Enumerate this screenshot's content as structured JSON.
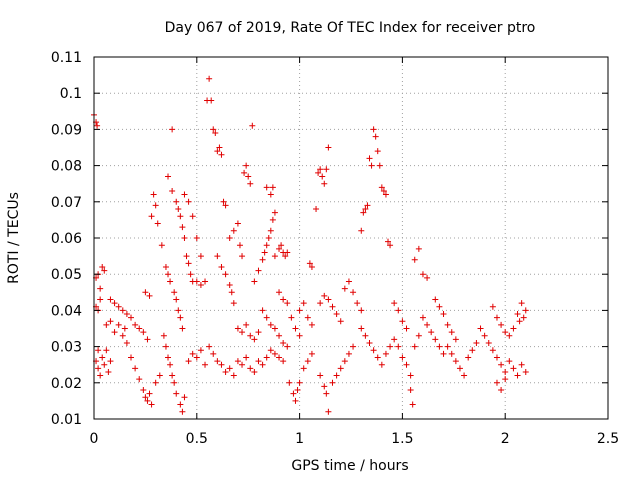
{
  "chart_data": {
    "type": "scatter",
    "title": "Day 067 of 2019, Rate Of TEC Index for receiver ptro",
    "xlabel": "GPS time / hours",
    "ylabel": "ROTI / TECUs",
    "xlim": [
      0,
      2.5
    ],
    "ylim": [
      0.01,
      0.11
    ],
    "x_ticks": [
      0,
      0.5,
      1,
      1.5,
      2,
      2.5
    ],
    "x_tick_labels": [
      "0",
      "0.5",
      "1",
      "1.5",
      "2",
      "2.5"
    ],
    "y_ticks": [
      0.01,
      0.02,
      0.03,
      0.04,
      0.05,
      0.06,
      0.07,
      0.08,
      0.09,
      0.1,
      0.11
    ],
    "y_tick_labels": [
      "0.01",
      "0.02",
      "0.03",
      "0.04",
      "0.05",
      "0.06",
      "0.07",
      "0.08",
      "0.09",
      "0.1",
      "0.11"
    ],
    "grid": true,
    "marker": "+",
    "color": "#e00000",
    "series": [
      {
        "name": "ROTI",
        "points": [
          [
            0.0,
            0.094
          ],
          [
            0.01,
            0.092
          ],
          [
            0.015,
            0.091
          ],
          [
            0.01,
            0.049
          ],
          [
            0.02,
            0.05
          ],
          [
            0.03,
            0.046
          ],
          [
            0.04,
            0.052
          ],
          [
            0.05,
            0.051
          ],
          [
            0.01,
            0.041
          ],
          [
            0.02,
            0.04
          ],
          [
            0.03,
            0.043
          ],
          [
            0.02,
            0.029
          ],
          [
            0.01,
            0.026
          ],
          [
            0.02,
            0.024
          ],
          [
            0.03,
            0.022
          ],
          [
            0.04,
            0.027
          ],
          [
            0.05,
            0.025
          ],
          [
            0.06,
            0.029
          ],
          [
            0.07,
            0.023
          ],
          [
            0.08,
            0.026
          ],
          [
            0.06,
            0.036
          ],
          [
            0.08,
            0.037
          ],
          [
            0.1,
            0.034
          ],
          [
            0.12,
            0.036
          ],
          [
            0.14,
            0.033
          ],
          [
            0.15,
            0.035
          ],
          [
            0.16,
            0.031
          ],
          [
            0.18,
            0.027
          ],
          [
            0.2,
            0.024
          ],
          [
            0.22,
            0.021
          ],
          [
            0.24,
            0.018
          ],
          [
            0.25,
            0.016
          ],
          [
            0.26,
            0.015
          ],
          [
            0.27,
            0.017
          ],
          [
            0.28,
            0.014
          ],
          [
            0.3,
            0.02
          ],
          [
            0.32,
            0.022
          ],
          [
            0.08,
            0.043
          ],
          [
            0.1,
            0.042
          ],
          [
            0.12,
            0.041
          ],
          [
            0.14,
            0.04
          ],
          [
            0.16,
            0.039
          ],
          [
            0.18,
            0.038
          ],
          [
            0.2,
            0.036
          ],
          [
            0.22,
            0.035
          ],
          [
            0.24,
            0.034
          ],
          [
            0.26,
            0.032
          ],
          [
            0.25,
            0.045
          ],
          [
            0.27,
            0.044
          ],
          [
            0.28,
            0.066
          ],
          [
            0.29,
            0.072
          ],
          [
            0.3,
            0.069
          ],
          [
            0.31,
            0.064
          ],
          [
            0.33,
            0.058
          ],
          [
            0.35,
            0.052
          ],
          [
            0.36,
            0.05
          ],
          [
            0.37,
            0.048
          ],
          [
            0.38,
            0.09
          ],
          [
            0.36,
            0.077
          ],
          [
            0.38,
            0.073
          ],
          [
            0.4,
            0.07
          ],
          [
            0.41,
            0.068
          ],
          [
            0.42,
            0.066
          ],
          [
            0.43,
            0.063
          ],
          [
            0.44,
            0.06
          ],
          [
            0.45,
            0.055
          ],
          [
            0.46,
            0.053
          ],
          [
            0.47,
            0.05
          ],
          [
            0.48,
            0.048
          ],
          [
            0.44,
            0.072
          ],
          [
            0.46,
            0.07
          ],
          [
            0.48,
            0.066
          ],
          [
            0.39,
            0.045
          ],
          [
            0.4,
            0.043
          ],
          [
            0.41,
            0.04
          ],
          [
            0.42,
            0.038
          ],
          [
            0.43,
            0.035
          ],
          [
            0.34,
            0.033
          ],
          [
            0.35,
            0.03
          ],
          [
            0.36,
            0.027
          ],
          [
            0.37,
            0.025
          ],
          [
            0.38,
            0.022
          ],
          [
            0.39,
            0.02
          ],
          [
            0.4,
            0.017
          ],
          [
            0.42,
            0.014
          ],
          [
            0.43,
            0.012
          ],
          [
            0.44,
            0.016
          ],
          [
            0.46,
            0.026
          ],
          [
            0.48,
            0.028
          ],
          [
            0.5,
            0.027
          ],
          [
            0.52,
            0.029
          ],
          [
            0.54,
            0.025
          ],
          [
            0.5,
            0.06
          ],
          [
            0.52,
            0.055
          ],
          [
            0.5,
            0.048
          ],
          [
            0.52,
            0.047
          ],
          [
            0.54,
            0.048
          ],
          [
            0.55,
            0.098
          ],
          [
            0.56,
            0.104
          ],
          [
            0.57,
            0.098
          ],
          [
            0.58,
            0.09
          ],
          [
            0.59,
            0.089
          ],
          [
            0.6,
            0.084
          ],
          [
            0.61,
            0.085
          ],
          [
            0.62,
            0.083
          ],
          [
            0.63,
            0.07
          ],
          [
            0.64,
            0.069
          ],
          [
            0.6,
            0.055
          ],
          [
            0.62,
            0.052
          ],
          [
            0.64,
            0.05
          ],
          [
            0.66,
            0.047
          ],
          [
            0.67,
            0.045
          ],
          [
            0.68,
            0.042
          ],
          [
            0.66,
            0.06
          ],
          [
            0.68,
            0.062
          ],
          [
            0.7,
            0.064
          ],
          [
            0.71,
            0.058
          ],
          [
            0.72,
            0.055
          ],
          [
            0.73,
            0.078
          ],
          [
            0.74,
            0.08
          ],
          [
            0.75,
            0.077
          ],
          [
            0.76,
            0.075
          ],
          [
            0.77,
            0.091
          ],
          [
            0.56,
            0.03
          ],
          [
            0.58,
            0.028
          ],
          [
            0.6,
            0.026
          ],
          [
            0.62,
            0.025
          ],
          [
            0.64,
            0.023
          ],
          [
            0.66,
            0.024
          ],
          [
            0.68,
            0.022
          ],
          [
            0.7,
            0.026
          ],
          [
            0.72,
            0.025
          ],
          [
            0.74,
            0.027
          ],
          [
            0.76,
            0.024
          ],
          [
            0.78,
            0.023
          ],
          [
            0.8,
            0.026
          ],
          [
            0.7,
            0.035
          ],
          [
            0.72,
            0.034
          ],
          [
            0.74,
            0.036
          ],
          [
            0.76,
            0.033
          ],
          [
            0.78,
            0.032
          ],
          [
            0.8,
            0.034
          ],
          [
            0.78,
            0.048
          ],
          [
            0.8,
            0.051
          ],
          [
            0.82,
            0.054
          ],
          [
            0.83,
            0.056
          ],
          [
            0.84,
            0.058
          ],
          [
            0.85,
            0.06
          ],
          [
            0.86,
            0.062
          ],
          [
            0.87,
            0.065
          ],
          [
            0.88,
            0.067
          ],
          [
            0.86,
            0.072
          ],
          [
            0.84,
            0.074
          ],
          [
            0.87,
            0.074
          ],
          [
            0.88,
            0.055
          ],
          [
            0.9,
            0.057
          ],
          [
            0.91,
            0.058
          ],
          [
            0.92,
            0.056
          ],
          [
            0.93,
            0.055
          ],
          [
            0.94,
            0.056
          ],
          [
            0.9,
            0.045
          ],
          [
            0.92,
            0.043
          ],
          [
            0.94,
            0.042
          ],
          [
            0.82,
            0.04
          ],
          [
            0.84,
            0.038
          ],
          [
            0.86,
            0.036
          ],
          [
            0.88,
            0.035
          ],
          [
            0.9,
            0.033
          ],
          [
            0.92,
            0.031
          ],
          [
            0.82,
            0.025
          ],
          [
            0.84,
            0.027
          ],
          [
            0.86,
            0.029
          ],
          [
            0.88,
            0.028
          ],
          [
            0.9,
            0.027
          ],
          [
            0.92,
            0.026
          ],
          [
            0.94,
            0.03
          ],
          [
            0.96,
            0.038
          ],
          [
            0.98,
            0.035
          ],
          [
            1.0,
            0.033
          ],
          [
            0.95,
            0.02
          ],
          [
            0.97,
            0.017
          ],
          [
            0.98,
            0.015
          ],
          [
            0.99,
            0.018
          ],
          [
            1.0,
            0.02
          ],
          [
            1.02,
            0.024
          ],
          [
            1.04,
            0.026
          ],
          [
            1.06,
            0.028
          ],
          [
            1.0,
            0.04
          ],
          [
            1.02,
            0.042
          ],
          [
            1.04,
            0.038
          ],
          [
            1.06,
            0.036
          ],
          [
            1.05,
            0.053
          ],
          [
            1.06,
            0.052
          ],
          [
            1.08,
            0.068
          ],
          [
            1.09,
            0.078
          ],
          [
            1.1,
            0.079
          ],
          [
            1.11,
            0.077
          ],
          [
            1.12,
            0.075
          ],
          [
            1.13,
            0.079
          ],
          [
            1.14,
            0.085
          ],
          [
            1.1,
            0.042
          ],
          [
            1.12,
            0.044
          ],
          [
            1.14,
            0.043
          ],
          [
            1.16,
            0.041
          ],
          [
            1.18,
            0.039
          ],
          [
            1.2,
            0.037
          ],
          [
            1.1,
            0.022
          ],
          [
            1.12,
            0.019
          ],
          [
            1.13,
            0.017
          ],
          [
            1.14,
            0.012
          ],
          [
            1.16,
            0.02
          ],
          [
            1.18,
            0.022
          ],
          [
            1.2,
            0.024
          ],
          [
            1.22,
            0.026
          ],
          [
            1.24,
            0.028
          ],
          [
            1.26,
            0.03
          ],
          [
            1.22,
            0.046
          ],
          [
            1.24,
            0.048
          ],
          [
            1.26,
            0.045
          ],
          [
            1.28,
            0.042
          ],
          [
            1.3,
            0.04
          ],
          [
            1.3,
            0.062
          ],
          [
            1.31,
            0.067
          ],
          [
            1.32,
            0.068
          ],
          [
            1.33,
            0.069
          ],
          [
            1.34,
            0.082
          ],
          [
            1.35,
            0.08
          ],
          [
            1.36,
            0.09
          ],
          [
            1.37,
            0.088
          ],
          [
            1.38,
            0.084
          ],
          [
            1.39,
            0.08
          ],
          [
            1.4,
            0.074
          ],
          [
            1.41,
            0.073
          ],
          [
            1.42,
            0.072
          ],
          [
            1.43,
            0.059
          ],
          [
            1.44,
            0.058
          ],
          [
            1.3,
            0.035
          ],
          [
            1.32,
            0.033
          ],
          [
            1.34,
            0.031
          ],
          [
            1.36,
            0.029
          ],
          [
            1.38,
            0.027
          ],
          [
            1.4,
            0.025
          ],
          [
            1.42,
            0.028
          ],
          [
            1.44,
            0.03
          ],
          [
            1.46,
            0.032
          ],
          [
            1.48,
            0.03
          ],
          [
            1.5,
            0.027
          ],
          [
            1.52,
            0.025
          ],
          [
            1.54,
            0.022
          ],
          [
            1.46,
            0.042
          ],
          [
            1.48,
            0.04
          ],
          [
            1.5,
            0.037
          ],
          [
            1.52,
            0.035
          ],
          [
            1.54,
            0.018
          ],
          [
            1.55,
            0.014
          ],
          [
            1.56,
            0.03
          ],
          [
            1.58,
            0.033
          ],
          [
            1.56,
            0.054
          ],
          [
            1.58,
            0.057
          ],
          [
            1.6,
            0.05
          ],
          [
            1.62,
            0.049
          ],
          [
            1.6,
            0.038
          ],
          [
            1.62,
            0.036
          ],
          [
            1.64,
            0.034
          ],
          [
            1.66,
            0.032
          ],
          [
            1.68,
            0.03
          ],
          [
            1.7,
            0.028
          ],
          [
            1.66,
            0.043
          ],
          [
            1.68,
            0.041
          ],
          [
            1.7,
            0.039
          ],
          [
            1.72,
            0.036
          ],
          [
            1.74,
            0.034
          ],
          [
            1.76,
            0.032
          ],
          [
            1.72,
            0.03
          ],
          [
            1.74,
            0.028
          ],
          [
            1.76,
            0.026
          ],
          [
            1.78,
            0.024
          ],
          [
            1.8,
            0.022
          ],
          [
            1.82,
            0.027
          ],
          [
            1.84,
            0.029
          ],
          [
            1.86,
            0.031
          ],
          [
            1.88,
            0.035
          ],
          [
            1.9,
            0.033
          ],
          [
            1.92,
            0.031
          ],
          [
            1.94,
            0.029
          ],
          [
            1.96,
            0.027
          ],
          [
            1.98,
            0.025
          ],
          [
            2.0,
            0.023
          ],
          [
            2.02,
            0.026
          ],
          [
            1.94,
            0.041
          ],
          [
            1.96,
            0.038
          ],
          [
            1.98,
            0.036
          ],
          [
            2.0,
            0.034
          ],
          [
            2.02,
            0.033
          ],
          [
            2.04,
            0.035
          ],
          [
            1.96,
            0.02
          ],
          [
            1.98,
            0.018
          ],
          [
            2.0,
            0.021
          ],
          [
            2.04,
            0.024
          ],
          [
            2.06,
            0.022
          ],
          [
            2.08,
            0.025
          ],
          [
            2.06,
            0.039
          ],
          [
            2.07,
            0.037
          ],
          [
            2.08,
            0.042
          ],
          [
            2.09,
            0.038
          ],
          [
            2.1,
            0.04
          ],
          [
            2.1,
            0.023
          ]
        ]
      }
    ]
  }
}
